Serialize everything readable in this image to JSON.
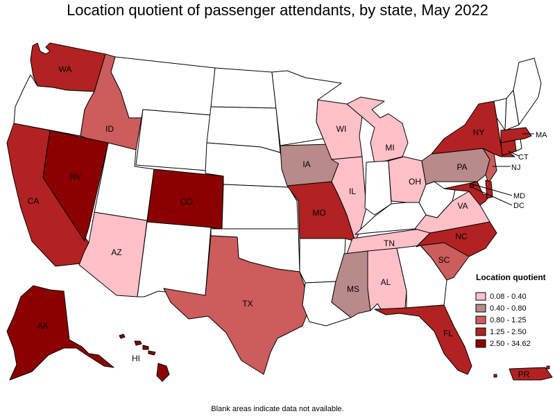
{
  "title": "Location quotient of passenger attendants, by state, May 2022",
  "footnote": "Blank areas indicate data not available.",
  "legend": {
    "title": "Location quotient",
    "placement": "bottom-right",
    "classes": [
      {
        "label": "0.08 - 0.40",
        "color": "#ffc0c8"
      },
      {
        "label": "0.40 - 0.80",
        "color": "#b88a8a"
      },
      {
        "label": "0.80 - 1.25",
        "color": "#cd5c5c"
      },
      {
        "label": "1.25 - 2.50",
        "color": "#b22222"
      },
      {
        "label": "2.50 - 34.62",
        "color": "#8b0000"
      }
    ]
  },
  "no_data_color": "#ffffff",
  "chart_data": {
    "type": "choropleth",
    "value_name": "Location quotient",
    "states": [
      {
        "state": "AK",
        "class": 4
      },
      {
        "state": "HI",
        "class": 4
      },
      {
        "state": "WA",
        "class": 3
      },
      {
        "state": "ID",
        "class": 2
      },
      {
        "state": "CA",
        "class": 3
      },
      {
        "state": "NV",
        "class": 4
      },
      {
        "state": "AZ",
        "class": 0
      },
      {
        "state": "CO",
        "class": 4
      },
      {
        "state": "TX",
        "class": 2
      },
      {
        "state": "IA",
        "class": 1
      },
      {
        "state": "MO",
        "class": 3
      },
      {
        "state": "WI",
        "class": 0
      },
      {
        "state": "IL",
        "class": 0
      },
      {
        "state": "MI",
        "class": 0
      },
      {
        "state": "OH",
        "class": 0
      },
      {
        "state": "TN",
        "class": 0
      },
      {
        "state": "MS",
        "class": 1
      },
      {
        "state": "AL",
        "class": 0
      },
      {
        "state": "FL",
        "class": 3
      },
      {
        "state": "SC",
        "class": 2
      },
      {
        "state": "NC",
        "class": 3
      },
      {
        "state": "VA",
        "class": 0
      },
      {
        "state": "PA",
        "class": 1
      },
      {
        "state": "NY",
        "class": 3
      },
      {
        "state": "NJ",
        "class": 2
      },
      {
        "state": "CT",
        "class": 3
      },
      {
        "state": "MA",
        "class": 3
      },
      {
        "state": "MD",
        "class": 3
      },
      {
        "state": "DC",
        "class": 4
      },
      {
        "state": "DE",
        "class": 3
      },
      {
        "state": "PR",
        "class": 3
      },
      {
        "state": "OR",
        "class": null
      },
      {
        "state": "MT",
        "class": null
      },
      {
        "state": "WY",
        "class": null
      },
      {
        "state": "UT",
        "class": null
      },
      {
        "state": "NM",
        "class": null
      },
      {
        "state": "ND",
        "class": null
      },
      {
        "state": "SD",
        "class": null
      },
      {
        "state": "NE",
        "class": null
      },
      {
        "state": "KS",
        "class": null
      },
      {
        "state": "OK",
        "class": null
      },
      {
        "state": "MN",
        "class": null
      },
      {
        "state": "AR",
        "class": null
      },
      {
        "state": "LA",
        "class": null
      },
      {
        "state": "IN",
        "class": null
      },
      {
        "state": "KY",
        "class": null
      },
      {
        "state": "WV",
        "class": null
      },
      {
        "state": "GA",
        "class": null
      },
      {
        "state": "ME",
        "class": null
      },
      {
        "state": "NH",
        "class": null
      },
      {
        "state": "VT",
        "class": null
      },
      {
        "state": "RI",
        "class": null
      }
    ],
    "printed_labels": [
      "WA",
      "ID",
      "CA",
      "NV",
      "AZ",
      "CO",
      "TX",
      "IA",
      "MO",
      "WI",
      "IL",
      "MI",
      "OH",
      "TN",
      "MS",
      "AL",
      "FL",
      "SC",
      "NC",
      "VA",
      "PA",
      "NY",
      "NJ",
      "CT",
      "MA",
      "MD",
      "DC",
      "AK",
      "HI",
      "PR"
    ]
  }
}
